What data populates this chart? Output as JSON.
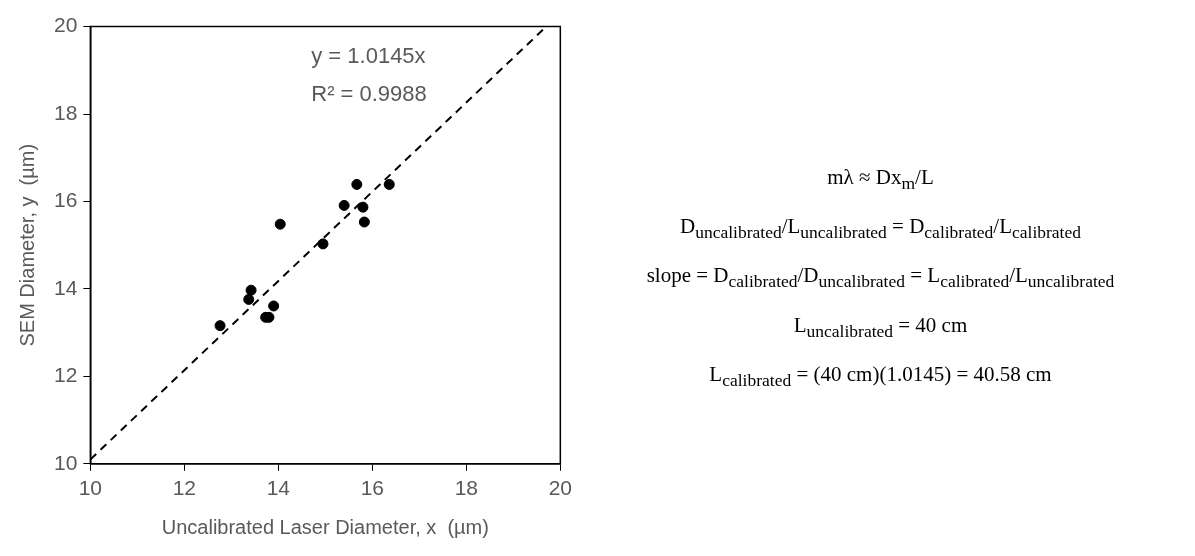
{
  "chart_data": {
    "type": "scatter",
    "xlabel": "Uncalibrated Laser Diameter, x  (µm)",
    "ylabel": "SEM Diameter, y  (µm)",
    "xlim": [
      10,
      20
    ],
    "ylim": [
      10,
      20
    ],
    "xticks": [
      10,
      12,
      14,
      16,
      18,
      20
    ],
    "yticks": [
      10,
      12,
      14,
      16,
      18,
      20
    ],
    "grid": false,
    "legend": false,
    "marker": "circle",
    "series": [
      {
        "type": "scatter",
        "color": "#000000",
        "x": [
          12.76,
          13.42,
          13.37,
          13.73,
          13.8,
          13.9,
          14.04,
          14.95,
          15.4,
          15.67,
          15.8,
          15.83,
          16.36
        ],
        "values": [
          13.16,
          13.97,
          13.76,
          13.35,
          13.35,
          13.61,
          15.48,
          15.03,
          15.91,
          16.39,
          15.87,
          15.53,
          16.39
        ]
      },
      {
        "type": "line",
        "color": "#000000",
        "line_style": "dashed",
        "marker": "none",
        "x": [
          10,
          19.7
        ],
        "values": [
          10.1,
          20
        ]
      }
    ],
    "annotations": [
      "y = 1.0145x",
      "R² = 0.9988",
      "mλ ≈ Dx$_{m}$/L",
      "D$_{uncalibrated}$/L$_{uncalibrated}$ = D$_{calibrated}$/L$_{calibrated}$",
      "slope = D$_{calibrated}$/D$_{uncalibrated}$ = L$_{calibrated}$/L$_{uncalibrated}$",
      "L$_{uncalibrated}$ = 40 cm",
      "L$_{calibrated}$ = (40 cm)(1.0145) = 40.58 cm"
    ]
  }
}
